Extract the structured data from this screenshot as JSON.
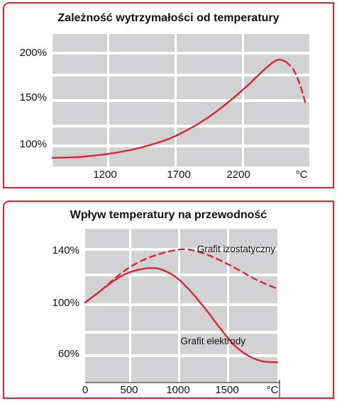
{
  "colors": {
    "accent": "#d9262e",
    "grid_block": "#d2d2d4",
    "grid_line": "#ffffff"
  },
  "chart_data": [
    {
      "type": "line",
      "title": "Zależność wytrzymałości od temperatury",
      "x_tick_labels": [
        "1200",
        "1700",
        "2200",
        "°C"
      ],
      "y_tick_labels": [
        "100%",
        "150%",
        "200%"
      ],
      "xlim": [
        750,
        2750
      ],
      "ylim": [
        88,
        226
      ],
      "grid": true,
      "series": [
        {
          "style": "solid",
          "x": [
            750,
            900,
            1050,
            1200,
            1350,
            1500,
            1650,
            1800,
            1950,
            2100,
            2250,
            2400,
            2500,
            2570
          ],
          "y": [
            97,
            97.5,
            99,
            101.5,
            105,
            110,
            116.5,
            126,
            138,
            153,
            170,
            189,
            199,
            197
          ]
        },
        {
          "style": "dashed",
          "x": [
            2570,
            2630,
            2680,
            2720
          ],
          "y": [
            197,
            188,
            172,
            154
          ]
        }
      ]
    },
    {
      "type": "line",
      "title": "Wpływ temperatury na przewodność",
      "x_tick_labels": [
        "0",
        "500",
        "1000",
        "1500",
        "°C"
      ],
      "y_tick_labels": [
        "140%",
        "100%",
        "60%"
      ],
      "xlim": [
        0,
        2000
      ],
      "ylim": [
        50,
        148
      ],
      "grid": true,
      "series": [
        {
          "name": "Grafit izostatyczny",
          "style": "dashed",
          "x": [
            0,
            150,
            300,
            450,
            600,
            750,
            900,
            1050,
            1200,
            1350,
            1500,
            1650,
            1800,
            1950,
            2000
          ],
          "y": [
            101,
            108,
            116,
            123,
            128,
            131.5,
            134,
            135,
            133,
            129.5,
            125,
            120,
            115,
            111,
            110
          ]
        },
        {
          "name": "Grafit elektrody",
          "style": "solid",
          "x": [
            0,
            150,
            300,
            450,
            600,
            700,
            800,
            950,
            1100,
            1250,
            1400,
            1550,
            1700,
            1850,
            2000
          ],
          "y": [
            101,
            108,
            115,
            120,
            122.5,
            123,
            122,
            117,
            108,
            97,
            85,
            74,
            67,
            63.5,
            63
          ]
        }
      ]
    }
  ]
}
